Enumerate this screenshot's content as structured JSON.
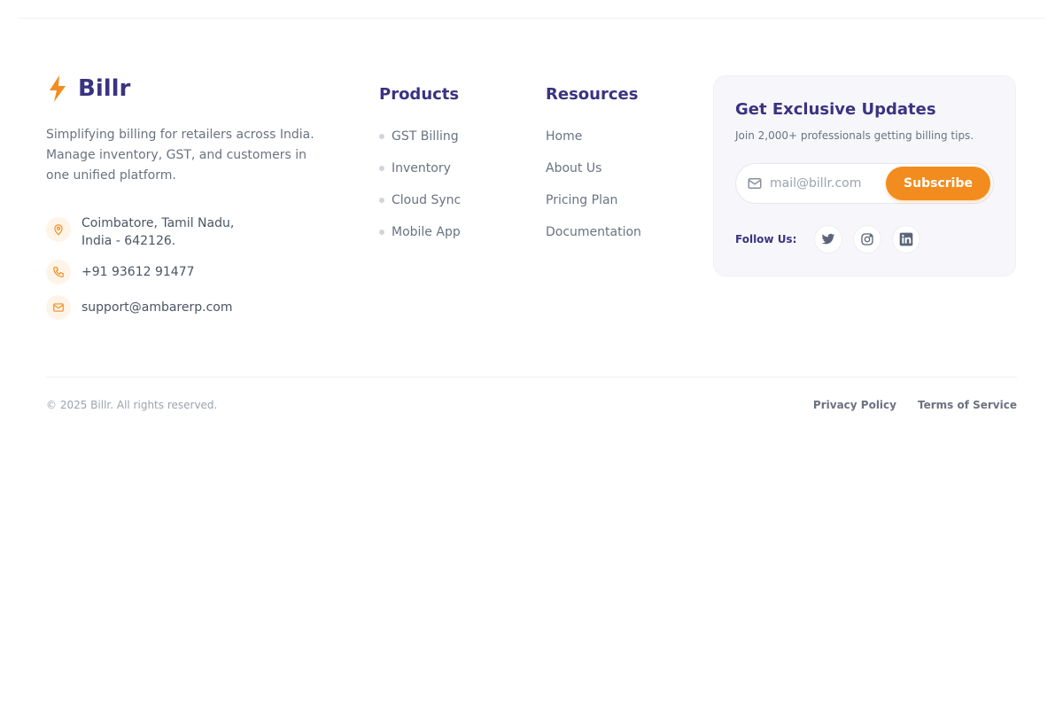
{
  "brand": {
    "name": "Billr",
    "icon": "bolt-icon",
    "accent": "#f28c1f",
    "primary": "#3b3380"
  },
  "description": "Simplifying billing for retailers across India. Manage inventory, GST, and customers in one unified platform.",
  "contact": {
    "address_line1": "Coimbatore, Tamil Nadu,",
    "address_line2": "India - 642126.",
    "phone": "+91 93612 91477",
    "email": "support@ambarerp.com"
  },
  "products": {
    "title": "Products",
    "items": [
      "GST Billing",
      "Inventory",
      "Cloud Sync",
      "Mobile App"
    ]
  },
  "resources": {
    "title": "Resources",
    "items": [
      "Home",
      "About Us",
      "Pricing Plan",
      "Documentation"
    ]
  },
  "newsletter": {
    "title": "Get Exclusive Updates",
    "subtitle": "Join 2,000+ professionals getting billing tips.",
    "email_placeholder": "mail@billr.com",
    "email_value": "",
    "subscribe_label": "Subscribe",
    "follow_label": "Follow Us:",
    "socials": [
      "twitter-icon",
      "instagram-icon",
      "linkedin-icon"
    ]
  },
  "footer": {
    "copyright": "© 2025 Billr. All rights reserved.",
    "privacy": "Privacy Policy",
    "terms": "Terms of Service"
  }
}
